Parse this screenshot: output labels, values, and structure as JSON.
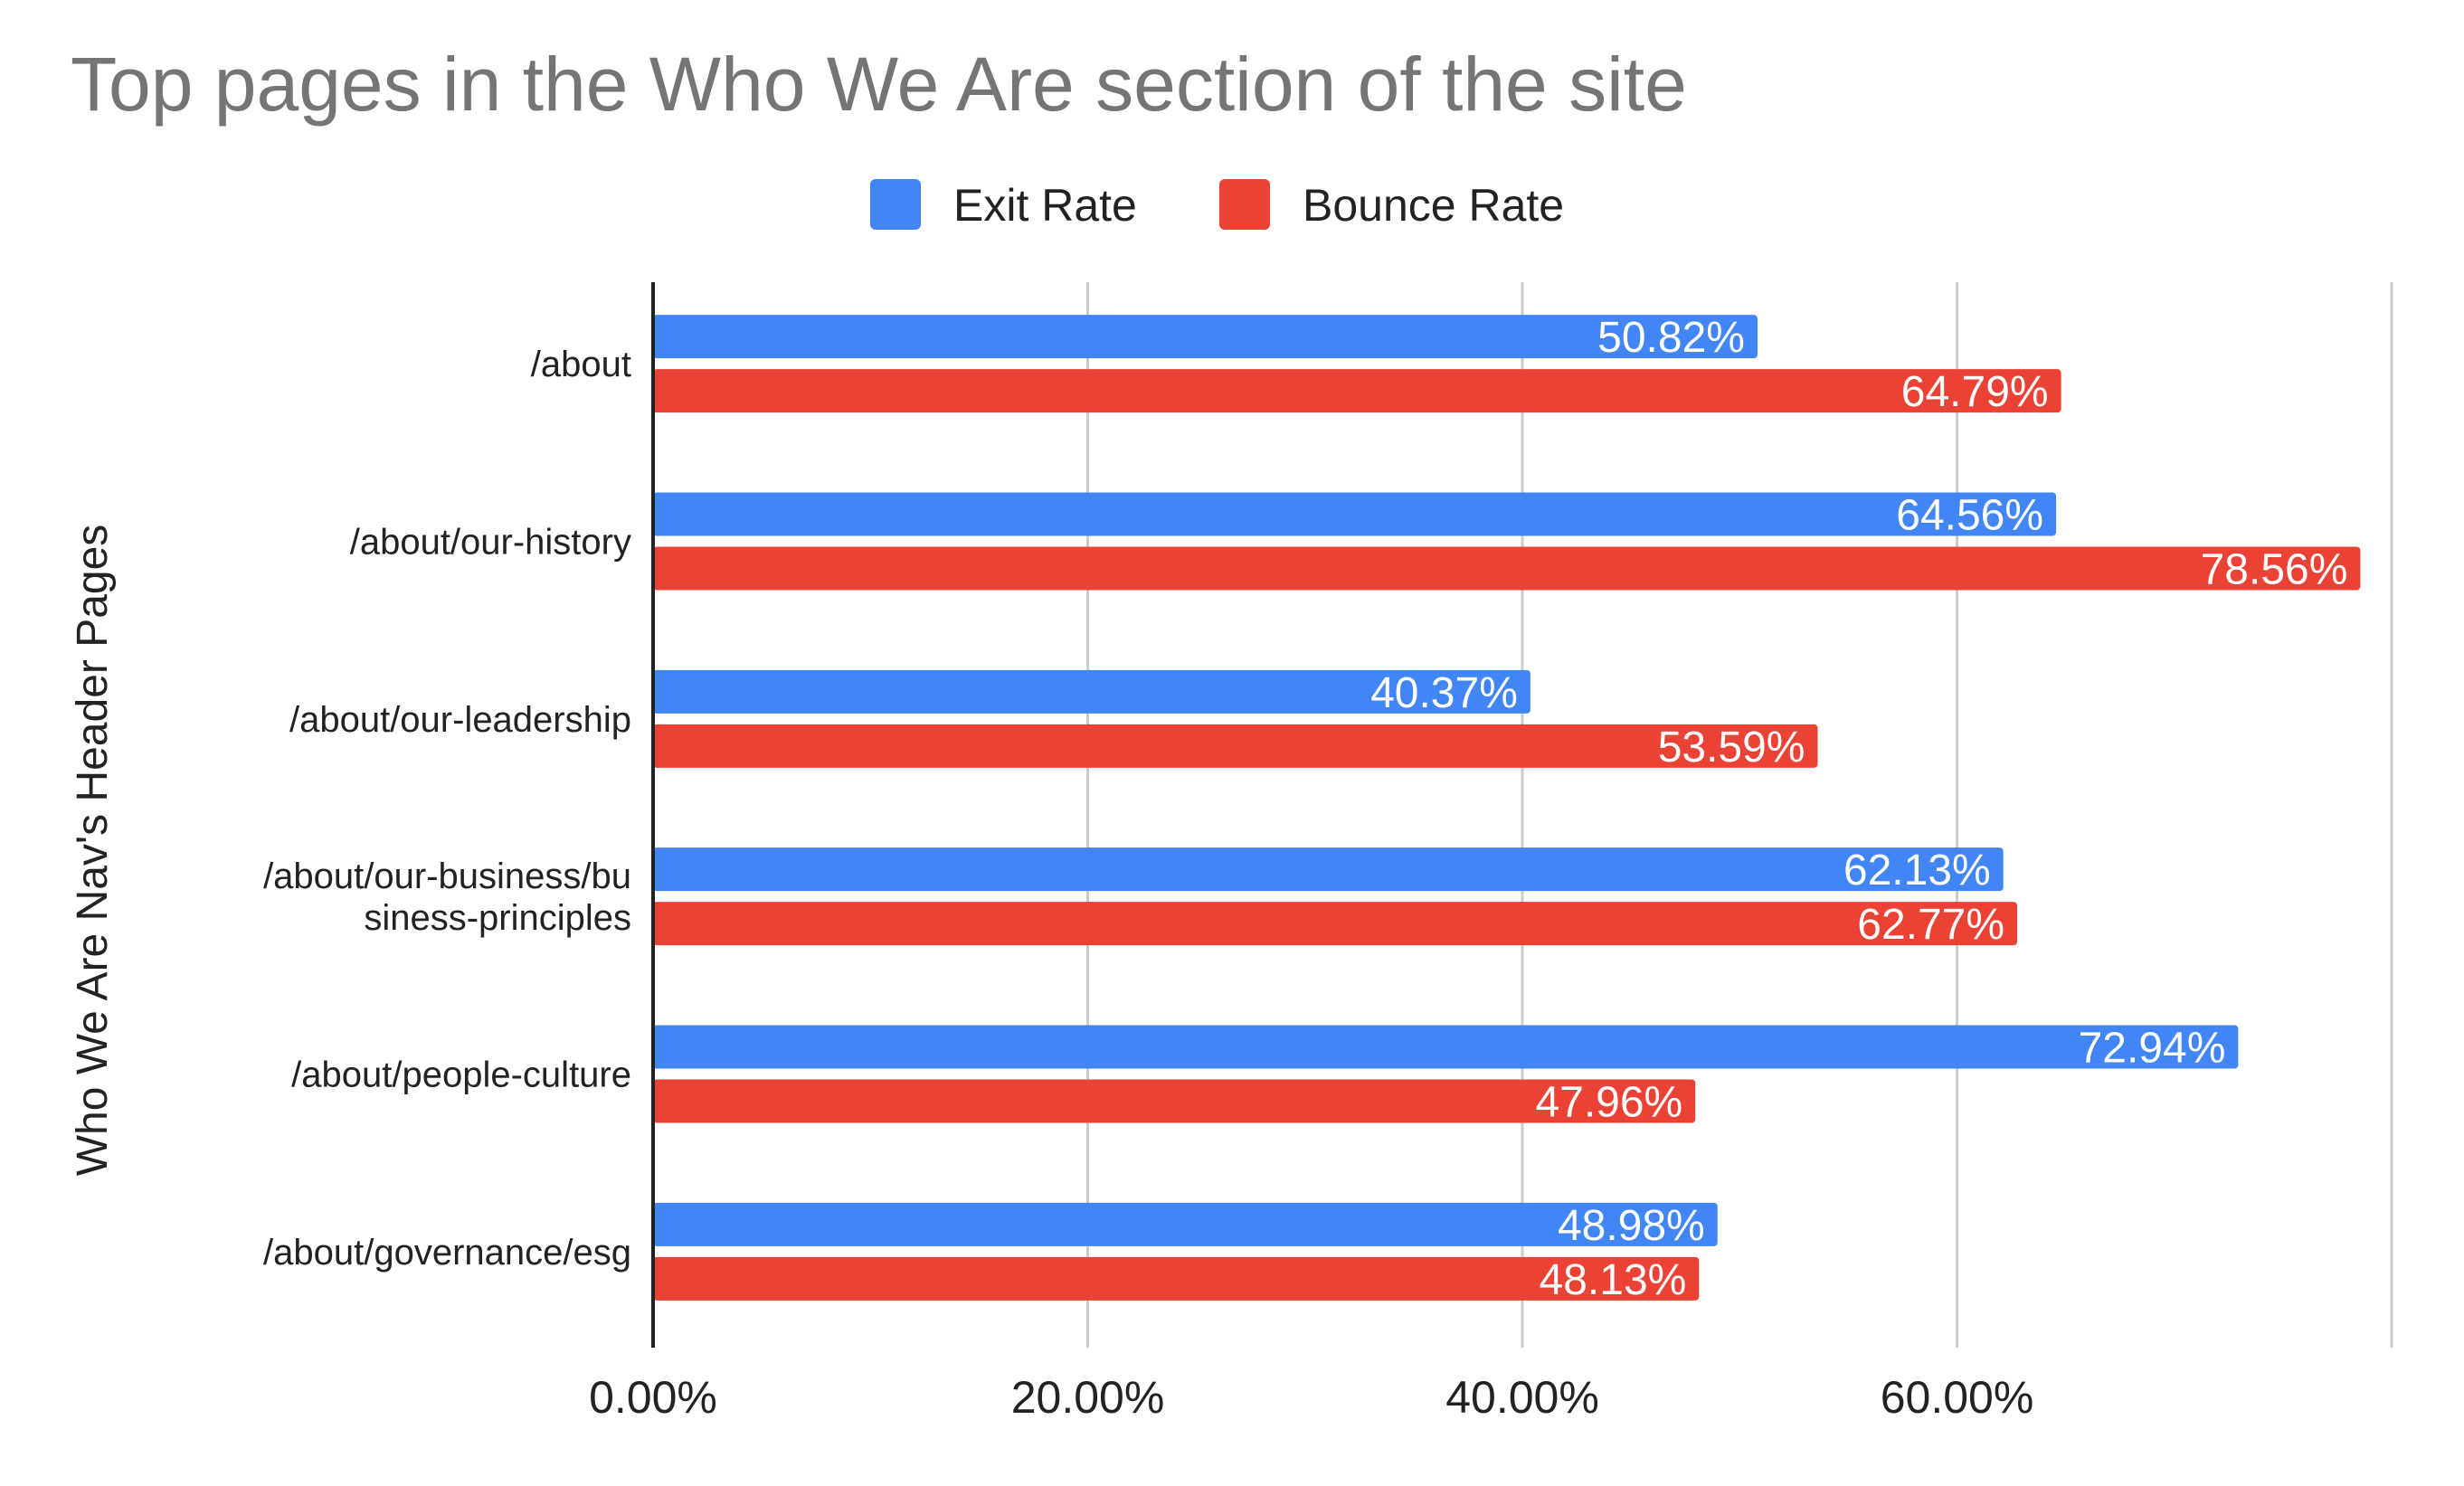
{
  "chart_data": {
    "type": "bar",
    "orientation": "horizontal",
    "title": "Top pages in the Who We Are section of the site",
    "ylabel": "Who We Are Nav's Header Pages",
    "xlabel": "",
    "categories": [
      [
        "/about"
      ],
      [
        "/about/our-history"
      ],
      [
        "/about/our-leadership"
      ],
      [
        "/about/our-business/bu",
        "siness-principles"
      ],
      [
        "/about/people-culture"
      ],
      [
        "/about/governance/esg"
      ]
    ],
    "series": [
      {
        "name": "Exit Rate",
        "color": "#4285f4",
        "values": [
          50.82,
          64.56,
          40.37,
          62.13,
          72.94,
          48.98
        ],
        "labels": [
          "50.82%",
          "64.56%",
          "40.37%",
          "62.13%",
          "72.94%",
          "48.98%"
        ]
      },
      {
        "name": "Bounce Rate",
        "color": "#ea4335",
        "values": [
          64.79,
          78.56,
          53.59,
          62.77,
          47.96,
          48.13
        ],
        "labels": [
          "64.79%",
          "78.56%",
          "53.59%",
          "62.77%",
          "47.96%",
          "48.13%"
        ]
      }
    ],
    "xlim": [
      0,
      80
    ],
    "xticks": [
      0,
      20,
      40,
      60,
      80
    ],
    "xtick_labels": [
      "0.00%",
      "20.00%",
      "40.00%",
      "60.00%",
      ""
    ],
    "grid": true,
    "legend_position": "top"
  }
}
